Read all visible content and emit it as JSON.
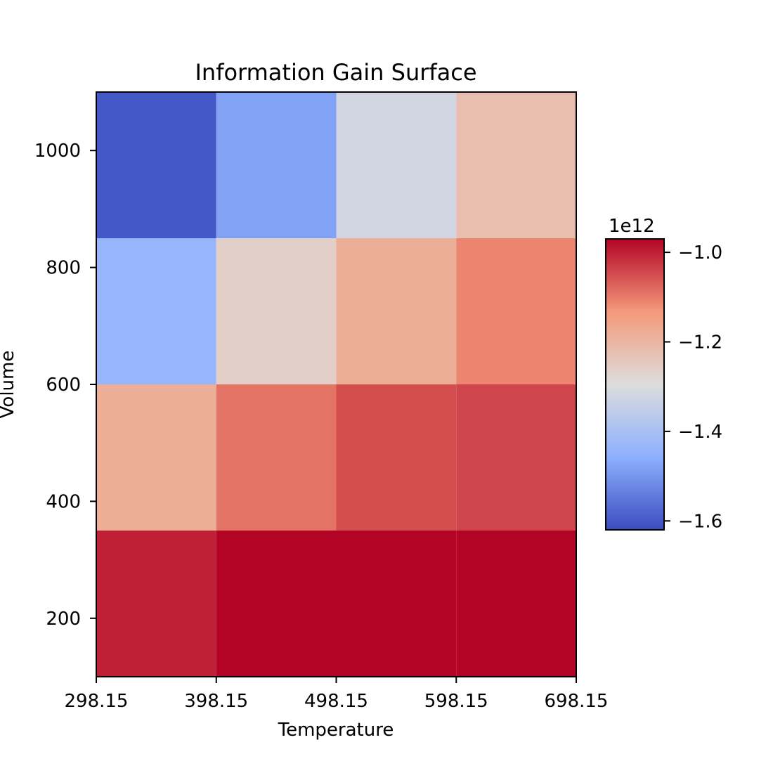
{
  "chart_data": {
    "type": "heatmap",
    "title": "Information Gain Surface",
    "xlabel": "Temperature",
    "ylabel": "Volume",
    "x_edges": [
      298.15,
      398.15,
      498.15,
      598.15,
      698.15
    ],
    "x_tick_labels": [
      "298.15",
      "398.15",
      "498.15",
      "598.15",
      "698.15"
    ],
    "y_range": [
      100,
      1100
    ],
    "y_edges": [
      100,
      350,
      600,
      850,
      1100
    ],
    "y_ticks": [
      200,
      400,
      600,
      800,
      1000
    ],
    "y_tick_labels": [
      "200",
      "400",
      "600",
      "800",
      "1000"
    ],
    "values": [
      [
        -1.0,
        -0.97,
        -0.97,
        -0.97
      ],
      [
        -1.18,
        -1.09,
        -1.05,
        -1.04
      ],
      [
        -1.44,
        -1.26,
        -1.18,
        -1.11
      ],
      [
        -1.6,
        -1.48,
        -1.32,
        -1.22
      ]
    ],
    "colorbar": {
      "colormap": "coolwarm",
      "range": [
        -1.62,
        -0.97
      ],
      "ticks": [
        -1.0,
        -1.2,
        -1.4,
        -1.6
      ],
      "tick_labels": [
        "−1.0",
        "−1.2",
        "−1.4",
        "−1.6"
      ],
      "exponent_label": "1e12"
    },
    "grid": false
  }
}
